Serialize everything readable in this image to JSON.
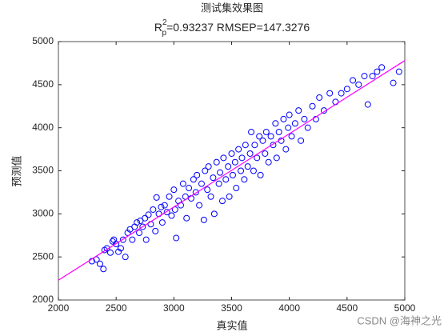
{
  "chart_data": {
    "type": "scatter",
    "title": "测试集效果图",
    "subtitle": {
      "base": "R",
      "sup": "2",
      "sub": "p",
      "rest": "=0.93237  RMSEP=147.3276"
    },
    "xlabel": "真实值",
    "ylabel": "预测值",
    "watermark": "CSDN @海神之光",
    "xlim": [
      2000,
      5000
    ],
    "ylim": [
      2000,
      5000
    ],
    "xticks": [
      2000,
      2500,
      3000,
      3500,
      4000,
      4500,
      5000
    ],
    "yticks": [
      2000,
      2500,
      3000,
      3500,
      4000,
      4500,
      5000
    ],
    "color": "#0000ff",
    "x": [
      2290,
      2330,
      2360,
      2390,
      2400,
      2420,
      2450,
      2470,
      2480,
      2500,
      2520,
      2540,
      2560,
      2580,
      2600,
      2620,
      2640,
      2660,
      2680,
      2700,
      2710,
      2730,
      2750,
      2760,
      2780,
      2800,
      2820,
      2840,
      2850,
      2870,
      2890,
      2900,
      2920,
      2940,
      2960,
      2980,
      3000,
      3010,
      3020,
      3040,
      3060,
      3080,
      3100,
      3110,
      3130,
      3150,
      3170,
      3190,
      3200,
      3220,
      3240,
      3260,
      3270,
      3290,
      3300,
      3320,
      3340,
      3350,
      3370,
      3390,
      3400,
      3420,
      3430,
      3450,
      3470,
      3480,
      3500,
      3510,
      3530,
      3540,
      3560,
      3580,
      3590,
      3610,
      3620,
      3640,
      3660,
      3670,
      3690,
      3700,
      3720,
      3740,
      3750,
      3770,
      3790,
      3800,
      3820,
      3840,
      3860,
      3880,
      3890,
      3910,
      3930,
      3950,
      3970,
      3990,
      4000,
      4020,
      4050,
      4080,
      4100,
      4130,
      4160,
      4200,
      4230,
      4260,
      4300,
      4350,
      4400,
      4450,
      4500,
      4550,
      4600,
      4650,
      4680,
      4720,
      4760,
      4800,
      4900,
      4950
    ],
    "values": [
      2450,
      2470,
      2420,
      2360,
      2580,
      2600,
      2550,
      2680,
      2700,
      2650,
      2560,
      2600,
      2700,
      2500,
      2780,
      2820,
      2700,
      2850,
      2900,
      2780,
      2920,
      2850,
      2950,
      2700,
      2990,
      2880,
      3050,
      2800,
      3190,
      3000,
      3080,
      2900,
      3100,
      3020,
      3200,
      2980,
      3280,
      3050,
      2720,
      3150,
      3100,
      3350,
      3200,
      2950,
      3300,
      3180,
      3400,
      3250,
      3450,
      3100,
      3350,
      2930,
      3500,
      3280,
      3550,
      3200,
      3420,
      3000,
      3600,
      3350,
      3480,
      3150,
      3650,
      3400,
      3550,
      3200,
      3700,
      3450,
      3600,
      3300,
      3750,
      3500,
      3650,
      3400,
      3800,
      3550,
      3700,
      3950,
      3500,
      3800,
      3650,
      3900,
      3450,
      3850,
      3700,
      3950,
      3600,
      3900,
      3800,
      4050,
      3650,
      3950,
      3850,
      4100,
      3750,
      4000,
      4150,
      3900,
      4050,
      4200,
      3850,
      4100,
      4000,
      4250,
      4100,
      4350,
      4200,
      4400,
      4300,
      4400,
      4450,
      4550,
      4500,
      4600,
      4270,
      4600,
      4650,
      4700,
      4520,
      4650
    ],
    "fit": {
      "color": "#ff00ff",
      "x": [
        2000,
        5000
      ],
      "values": [
        2230,
        4780
      ]
    }
  }
}
